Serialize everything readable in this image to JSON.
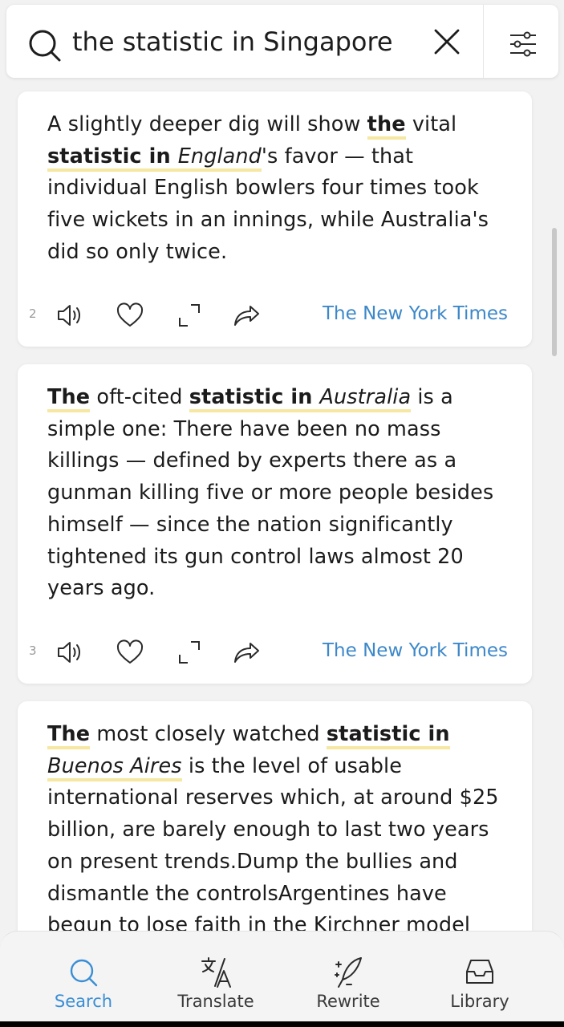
{
  "search": {
    "query": "the statistic in Singapore",
    "icon": "search-icon",
    "clear_icon": "close-icon",
    "filter_icon": "filter-sliders-icon"
  },
  "results": [
    {
      "index": "2",
      "segments": [
        {
          "t": "A slightly deeper dig will show ",
          "s": "n"
        },
        {
          "t": "the",
          "s": "b"
        },
        {
          "t": " vital ",
          "s": "n"
        },
        {
          "t": "statistic in ",
          "s": "b"
        },
        {
          "t": "England",
          "s": "i"
        },
        {
          "t": "'s favor — that individual English bowlers four times took five wickets in an innings, while Australia's did so only twice.",
          "s": "n"
        }
      ],
      "source": "The New York Times"
    },
    {
      "index": "3",
      "segments": [
        {
          "t": "The",
          "s": "b"
        },
        {
          "t": " oft-cited ",
          "s": "n"
        },
        {
          "t": "statistic in ",
          "s": "b"
        },
        {
          "t": "Australia",
          "s": "i"
        },
        {
          "t": " is a simple one: There have been no mass killings — defined by experts there as a gunman killing five or more people besides himself — since the nation significantly tightened its gun control laws almost 20 years ago.",
          "s": "n"
        }
      ],
      "source": "The New York Times"
    },
    {
      "index": "",
      "segments": [
        {
          "t": "The",
          "s": "b"
        },
        {
          "t": " most closely watched ",
          "s": "n"
        },
        {
          "t": "statistic in",
          "s": "b"
        },
        {
          "t": " ",
          "s": "n"
        },
        {
          "t": "Buenos Aires",
          "s": "i"
        },
        {
          "t": " is the level of usable international reserves which, at around $25 billion, are barely enough to last two years on present trends.Dump the bullies and dismantle the controlsArgentines have begun to lose faith in the Kirchner model",
          "s": "n"
        }
      ],
      "source": ""
    }
  ],
  "actions": [
    "speaker-icon",
    "heart-icon",
    "expand-icon",
    "share-icon"
  ],
  "nav": [
    {
      "label": "Search",
      "icon": "search-icon",
      "active": true
    },
    {
      "label": "Translate",
      "icon": "translate-icon",
      "active": false
    },
    {
      "label": "Rewrite",
      "icon": "quill-sparkle-icon",
      "active": false
    },
    {
      "label": "Library",
      "icon": "inbox-tray-icon",
      "active": false
    }
  ],
  "colors": {
    "accent": "#3a8ed4",
    "highlight": "#f6e7a1",
    "source": "#3d88c9"
  }
}
